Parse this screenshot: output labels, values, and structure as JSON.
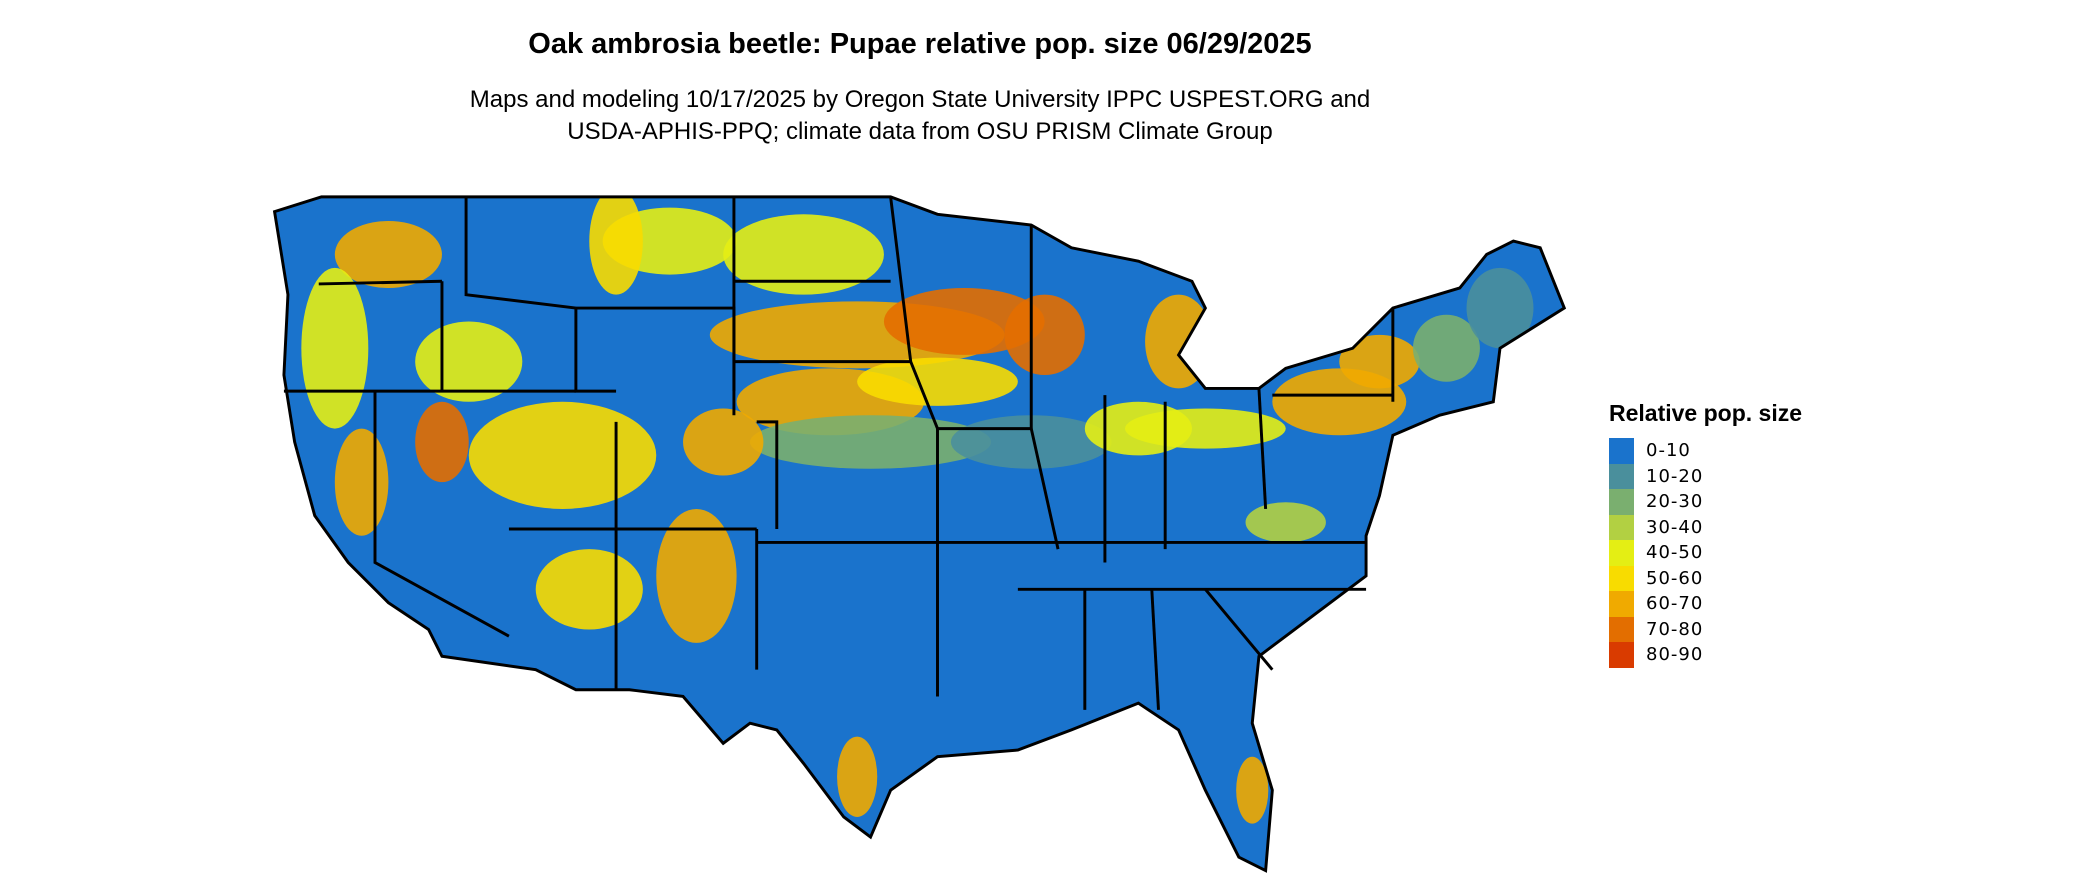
{
  "title": "Oak ambrosia beetle: Pupae relative pop. size 06/29/2025",
  "subtitle_lines": [
    "Maps and modeling 10/17/2025 by Oregon State University IPPC USPEST.ORG and",
    "USDA-APHIS-PPQ; climate data from OSU PRISM Climate Group"
  ],
  "map": {
    "region": "Contiguous United States",
    "boundaries": "state outlines",
    "base_color": "#1a73cc"
  },
  "legend": {
    "title": "Relative pop. size",
    "placement": "right",
    "items": [
      {
        "label": "0-10",
        "color": "#1a73cc"
      },
      {
        "label": "10-20",
        "color": "#4a8f9c"
      },
      {
        "label": "20-30",
        "color": "#7aaf6f"
      },
      {
        "label": "30-40",
        "color": "#b2d042"
      },
      {
        "label": "40-50",
        "color": "#e4ee14"
      },
      {
        "label": "50-60",
        "color": "#f8dc00"
      },
      {
        "label": "60-70",
        "color": "#f0aa00"
      },
      {
        "label": "70-80",
        "color": "#e36e00"
      },
      {
        "label": "80-90",
        "color": "#d93b00"
      }
    ]
  }
}
